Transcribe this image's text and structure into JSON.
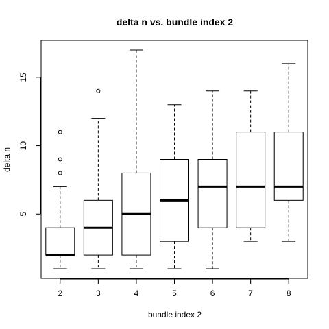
{
  "chart_data": {
    "type": "boxplot",
    "title": "delta n vs. bundle index 2",
    "xlabel": "bundle index 2",
    "ylabel": "delta n",
    "categories": [
      "2",
      "3",
      "4",
      "5",
      "6",
      "7",
      "8"
    ],
    "yticks": [
      "5",
      "10",
      "15"
    ],
    "ylim": [
      0.3,
      17.7
    ],
    "grid": false,
    "boxes": [
      {
        "category": "2",
        "whisker_low": 1,
        "q1": 2,
        "median": 2,
        "q3": 4,
        "whisker_high": 7,
        "outliers": [
          8,
          9,
          11
        ]
      },
      {
        "category": "3",
        "whisker_low": 1,
        "q1": 2,
        "median": 4,
        "q3": 6,
        "whisker_high": 12,
        "outliers": [
          14
        ]
      },
      {
        "category": "4",
        "whisker_low": 1,
        "q1": 2,
        "median": 5,
        "q3": 8,
        "whisker_high": 17,
        "outliers": []
      },
      {
        "category": "5",
        "whisker_low": 1,
        "q1": 3,
        "median": 6,
        "q3": 9,
        "whisker_high": 13,
        "outliers": []
      },
      {
        "category": "6",
        "whisker_low": 1,
        "q1": 4,
        "median": 7,
        "q3": 9,
        "whisker_high": 14,
        "outliers": []
      },
      {
        "category": "7",
        "whisker_low": 3,
        "q1": 4,
        "median": 7,
        "q3": 11,
        "whisker_high": 14,
        "outliers": []
      },
      {
        "category": "8",
        "whisker_low": 3,
        "q1": 6,
        "median": 7,
        "q3": 11,
        "whisker_high": 16,
        "outliers": []
      }
    ]
  }
}
